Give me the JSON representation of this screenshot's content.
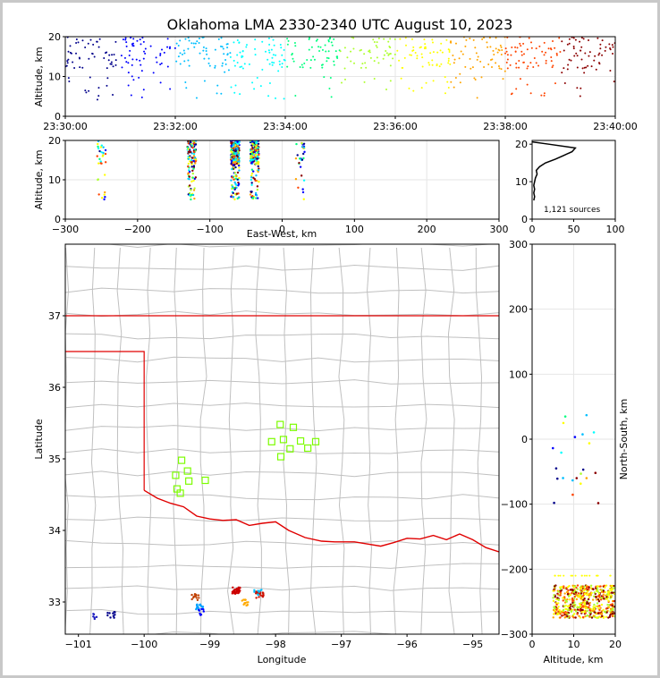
{
  "chart_data": [
    {
      "type": "scatter",
      "panel": "altitude-time",
      "title": "Oklahoma LMA 2330-2340 UTC August 10, 2023",
      "ylabel": "Altitude, km",
      "ylim": [
        0,
        20
      ],
      "yticks": [
        "0",
        "10",
        "20"
      ],
      "xticks": [
        "23:30:00",
        "23:32:00",
        "23:34:00",
        "23:36:00",
        "23:38:00",
        "23:40:00"
      ],
      "x_range_minutes": [
        0,
        10
      ],
      "color_by": "time",
      "colormap": [
        "#00008b",
        "#0000ff",
        "#00bfff",
        "#00ffff",
        "#00ff7f",
        "#adff2f",
        "#ffff00",
        "#ffa500",
        "#ff4500",
        "#8b0000"
      ],
      "grid": true
    },
    {
      "type": "scatter",
      "panel": "altitude-eastwest",
      "xlabel": "East-West, km",
      "ylabel": "Altitude, km",
      "xlim": [
        -300,
        300
      ],
      "ylim": [
        0,
        20
      ],
      "xticks": [
        "−300",
        "−200",
        "−100",
        "0",
        "100",
        "200",
        "300"
      ],
      "yticks": [
        "0",
        "10",
        "20"
      ],
      "clusters_km": [
        {
          "x": -250,
          "weight": 0.05
        },
        {
          "x": -125,
          "weight": 0.2
        },
        {
          "x": -65,
          "weight": 0.4
        },
        {
          "x": -38,
          "weight": 0.3
        },
        {
          "x": 25,
          "weight": 0.05
        }
      ],
      "grid": true
    },
    {
      "type": "line",
      "panel": "altitude-histogram",
      "xlim": [
        0,
        100
      ],
      "ylim": [
        0,
        20
      ],
      "xticks": [
        "0",
        "50",
        "100"
      ],
      "yticks": [
        "0",
        "10",
        "20"
      ],
      "annotation": "1,121 sources",
      "profile": [
        {
          "alt": 5,
          "count": 2
        },
        {
          "alt": 6,
          "count": 3
        },
        {
          "alt": 7,
          "count": 2
        },
        {
          "alt": 8,
          "count": 3
        },
        {
          "alt": 9,
          "count": 2
        },
        {
          "alt": 10,
          "count": 3
        },
        {
          "alt": 11,
          "count": 4
        },
        {
          "alt": 12,
          "count": 6
        },
        {
          "alt": 13,
          "count": 5
        },
        {
          "alt": 14,
          "count": 9
        },
        {
          "alt": 15,
          "count": 16
        },
        {
          "alt": 16,
          "count": 28
        },
        {
          "alt": 17,
          "count": 38
        },
        {
          "alt": 18,
          "count": 48
        },
        {
          "alt": 19,
          "count": 52
        },
        {
          "alt": 20,
          "count": 20
        },
        {
          "alt": 20.6,
          "count": 0
        }
      ],
      "grid": false
    },
    {
      "type": "scatter",
      "panel": "plan-view-map",
      "xlabel": "Longitude",
      "ylabel": "Latitude",
      "xlim": [
        -101.2,
        -94.6
      ],
      "ylim": [
        32.55,
        38.0
      ],
      "xticks": [
        "−101",
        "−100",
        "−99",
        "−98",
        "−97",
        "−96",
        "−95"
      ],
      "yticks": [
        "33",
        "34",
        "35",
        "36",
        "37"
      ],
      "stations": [
        {
          "lon": -97.93,
          "lat": 35.48
        },
        {
          "lon": -97.73,
          "lat": 35.44
        },
        {
          "lon": -98.06,
          "lat": 35.24
        },
        {
          "lon": -97.88,
          "lat": 35.27
        },
        {
          "lon": -97.62,
          "lat": 35.25
        },
        {
          "lon": -97.39,
          "lat": 35.24
        },
        {
          "lon": -97.78,
          "lat": 35.14
        },
        {
          "lon": -97.51,
          "lat": 35.15
        },
        {
          "lon": -97.92,
          "lat": 35.03
        },
        {
          "lon": -99.43,
          "lat": 34.98
        },
        {
          "lon": -99.34,
          "lat": 34.83
        },
        {
          "lon": -99.52,
          "lat": 34.77
        },
        {
          "lon": -99.32,
          "lat": 34.69
        },
        {
          "lon": -99.07,
          "lat": 34.7
        },
        {
          "lon": -99.5,
          "lat": 34.58
        },
        {
          "lon": -99.45,
          "lat": 34.52
        }
      ],
      "station_color": "#7cfc00",
      "border_color": "#e00000",
      "county_color": "#c0c0c0",
      "source_clusters": [
        {
          "lon": -100.5,
          "lat": 32.82,
          "n": 10,
          "color": "#00008b"
        },
        {
          "lon": -100.72,
          "lat": 32.8,
          "n": 6,
          "color": "#1c1cc0"
        },
        {
          "lon": -99.22,
          "lat": 33.07,
          "n": 16,
          "color": "#c04000"
        },
        {
          "lon": -99.15,
          "lat": 32.92,
          "n": 16,
          "color": "#00a0ff"
        },
        {
          "lon": -99.12,
          "lat": 32.86,
          "n": 8,
          "color": "#0000ff"
        },
        {
          "lon": -98.6,
          "lat": 33.16,
          "n": 34,
          "color": "#cc0000"
        },
        {
          "lon": -98.47,
          "lat": 32.99,
          "n": 14,
          "color": "#ffaa00"
        },
        {
          "lon": -98.24,
          "lat": 33.1,
          "n": 20,
          "color": "#cc1100"
        },
        {
          "lon": -98.27,
          "lat": 33.14,
          "n": 8,
          "color": "#00c0ff"
        }
      ],
      "grid": false
    },
    {
      "type": "scatter",
      "panel": "northsouth-altitude",
      "xlabel": "Altitude, km",
      "ylabel": "North-South, km",
      "xlim": [
        0,
        20
      ],
      "ylim": [
        -300,
        300
      ],
      "xticks": [
        "0",
        "10",
        "20"
      ],
      "yticks": [
        "−300",
        "−200",
        "−100",
        "0",
        "100",
        "200",
        "300"
      ],
      "band_km": [
        -275,
        -225
      ],
      "grid": true
    }
  ]
}
